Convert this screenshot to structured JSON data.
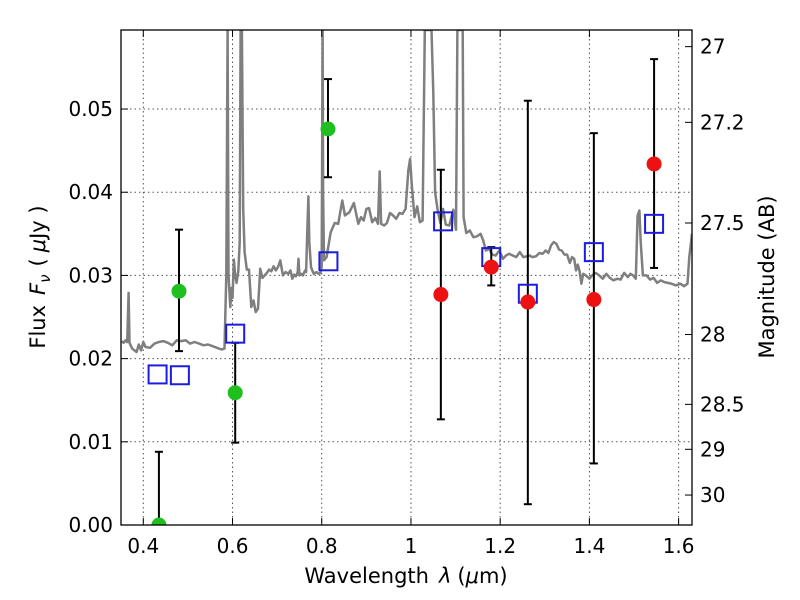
{
  "chart_data": {
    "type": "scatter",
    "xlabel_text": "Wavelength",
    "xlabel_symbol": "λ",
    "xlabel_unit_open": "(",
    "xlabel_unit_mu": "μ",
    "xlabel_unit_rest": "m)",
    "ylabel_text": "Flux",
    "ylabel_symbol_main": "F",
    "ylabel_symbol_sub": "ν",
    "ylabel_unit_open": "(",
    "ylabel_unit_mu": "μ",
    "ylabel_unit_rest": "Jy )",
    "y2label": "Magnitude (AB)",
    "xlim": [
      0.35,
      1.63
    ],
    "ylim": [
      0,
      0.0595
    ],
    "grid": true,
    "x_ticks": [
      {
        "value": 0.4,
        "label": "0.4"
      },
      {
        "value": 0.6,
        "label": "0.6"
      },
      {
        "value": 0.8,
        "label": "0.8"
      },
      {
        "value": 1.0,
        "label": "1"
      },
      {
        "value": 1.2,
        "label": "1.2"
      },
      {
        "value": 1.4,
        "label": "1.4"
      },
      {
        "value": 1.6,
        "label": "1.6"
      }
    ],
    "y_ticks": [
      {
        "value": 0.0,
        "label": "0.00"
      },
      {
        "value": 0.01,
        "label": "0.01"
      },
      {
        "value": 0.02,
        "label": "0.02"
      },
      {
        "value": 0.03,
        "label": "0.03"
      },
      {
        "value": 0.04,
        "label": "0.04"
      },
      {
        "value": 0.05,
        "label": "0.05"
      }
    ],
    "y2_ticks": [
      {
        "flux": 0.0575,
        "label": "27"
      },
      {
        "flux": 0.0484,
        "label": "27.2"
      },
      {
        "flux": 0.0363,
        "label": "27.5"
      },
      {
        "flux": 0.0229,
        "label": "28"
      },
      {
        "flux": 0.0145,
        "label": "28.5"
      },
      {
        "flux": 0.0091,
        "label": "29"
      },
      {
        "flux": 0.0036,
        "label": "30"
      }
    ],
    "colors": {
      "spectrum": "#7f7f7f",
      "green": "#1fbf1f",
      "red": "#ee1111",
      "square": "#1c1ce0",
      "errorbar": "#000000",
      "grid": "#555555"
    },
    "spectrum": {
      "name": "",
      "points": [
        [
          0.352,
          0.0221
        ],
        [
          0.356,
          0.0219
        ],
        [
          0.36,
          0.0222
        ],
        [
          0.364,
          0.022
        ],
        [
          0.367,
          0.0279
        ],
        [
          0.369,
          0.0219
        ],
        [
          0.375,
          0.0212
        ],
        [
          0.385,
          0.0208
        ],
        [
          0.39,
          0.0217
        ],
        [
          0.395,
          0.021
        ],
        [
          0.4,
          0.022
        ],
        [
          0.405,
          0.0214
        ],
        [
          0.415,
          0.0213
        ],
        [
          0.425,
          0.0218
        ],
        [
          0.435,
          0.022
        ],
        [
          0.445,
          0.0221
        ],
        [
          0.455,
          0.0219
        ],
        [
          0.465,
          0.0216
        ],
        [
          0.475,
          0.0222
        ],
        [
          0.485,
          0.0221
        ],
        [
          0.495,
          0.0222
        ],
        [
          0.505,
          0.0218
        ],
        [
          0.515,
          0.022
        ],
        [
          0.525,
          0.0218
        ],
        [
          0.535,
          0.0216
        ],
        [
          0.545,
          0.0217
        ],
        [
          0.555,
          0.0215
        ],
        [
          0.565,
          0.0213
        ],
        [
          0.575,
          0.0211
        ],
        [
          0.582,
          0.0212
        ],
        [
          0.586,
          0.03
        ],
        [
          0.589,
          0.0595
        ],
        [
          0.591,
          0.03
        ],
        [
          0.595,
          0.0262
        ],
        [
          0.598,
          0.0285
        ],
        [
          0.6,
          0.0273
        ],
        [
          0.603,
          0.0319
        ],
        [
          0.606,
          0.03
        ],
        [
          0.609,
          0.0291
        ],
        [
          0.613,
          0.0305
        ],
        [
          0.616,
          0.034
        ],
        [
          0.618,
          0.0595
        ],
        [
          0.621,
          0.0595
        ],
        [
          0.624,
          0.038
        ],
        [
          0.627,
          0.0328
        ],
        [
          0.632,
          0.0307
        ],
        [
          0.637,
          0.0307
        ],
        [
          0.642,
          0.0262
        ],
        [
          0.647,
          0.027
        ],
        [
          0.652,
          0.0256
        ],
        [
          0.657,
          0.026
        ],
        [
          0.662,
          0.0308
        ],
        [
          0.667,
          0.0297
        ],
        [
          0.672,
          0.03
        ],
        [
          0.677,
          0.0303
        ],
        [
          0.682,
          0.0307
        ],
        [
          0.687,
          0.0305
        ],
        [
          0.692,
          0.0311
        ],
        [
          0.697,
          0.0306
        ],
        [
          0.702,
          0.031
        ],
        [
          0.707,
          0.0318
        ],
        [
          0.713,
          0.03
        ],
        [
          0.719,
          0.0304
        ],
        [
          0.725,
          0.0302
        ],
        [
          0.73,
          0.0306
        ],
        [
          0.734,
          0.0296
        ],
        [
          0.738,
          0.0301
        ],
        [
          0.742,
          0.0299
        ],
        [
          0.746,
          0.0304
        ],
        [
          0.748,
          0.032
        ],
        [
          0.75,
          0.03
        ],
        [
          0.754,
          0.0302
        ],
        [
          0.758,
          0.03
        ],
        [
          0.761,
          0.0304
        ],
        [
          0.763,
          0.0306
        ],
        [
          0.765,
          0.0304
        ],
        [
          0.768,
          0.0362
        ],
        [
          0.77,
          0.0395
        ],
        [
          0.772,
          0.034
        ],
        [
          0.776,
          0.031
        ],
        [
          0.782,
          0.0302
        ],
        [
          0.788,
          0.0304
        ],
        [
          0.793,
          0.0302
        ],
        [
          0.797,
          0.0303
        ],
        [
          0.8,
          0.031
        ],
        [
          0.802,
          0.0595
        ],
        [
          0.803,
          0.04
        ],
        [
          0.805,
          0.0318
        ],
        [
          0.811,
          0.0322
        ],
        [
          0.82,
          0.0352
        ],
        [
          0.829,
          0.0363
        ],
        [
          0.837,
          0.0362
        ],
        [
          0.846,
          0.039
        ],
        [
          0.852,
          0.0372
        ],
        [
          0.862,
          0.0376
        ],
        [
          0.872,
          0.0387
        ],
        [
          0.882,
          0.0362
        ],
        [
          0.888,
          0.037
        ],
        [
          0.894,
          0.0366
        ],
        [
          0.9,
          0.038
        ],
        [
          0.906,
          0.0381
        ],
        [
          0.913,
          0.0364
        ],
        [
          0.92,
          0.0369
        ],
        [
          0.926,
          0.0362
        ],
        [
          0.93,
          0.0425
        ],
        [
          0.933,
          0.0362
        ],
        [
          0.94,
          0.036
        ],
        [
          0.946,
          0.0363
        ],
        [
          0.953,
          0.0375
        ],
        [
          0.96,
          0.0372
        ],
        [
          0.967,
          0.0368
        ],
        [
          0.974,
          0.0375
        ],
        [
          0.981,
          0.0374
        ],
        [
          0.988,
          0.038
        ],
        [
          0.994,
          0.0426
        ],
        [
          0.998,
          0.044
        ],
        [
          1.002,
          0.0407
        ],
        [
          1.008,
          0.037
        ],
        [
          1.014,
          0.0383
        ],
        [
          1.02,
          0.0364
        ],
        [
          1.026,
          0.0366
        ],
        [
          1.031,
          0.0595
        ],
        [
          1.034,
          0.0595
        ],
        [
          1.038,
          0.0595
        ],
        [
          1.042,
          0.0595
        ],
        [
          1.046,
          0.0595
        ],
        [
          1.05,
          0.052
        ],
        [
          1.054,
          0.04
        ],
        [
          1.06,
          0.0378
        ],
        [
          1.066,
          0.0363
        ],
        [
          1.072,
          0.038
        ],
        [
          1.078,
          0.0361
        ],
        [
          1.086,
          0.036
        ],
        [
          1.095,
          0.0379
        ],
        [
          1.101,
          0.0355
        ],
        [
          1.104,
          0.0595
        ],
        [
          1.108,
          0.0595
        ],
        [
          1.112,
          0.0595
        ],
        [
          1.116,
          0.0595
        ],
        [
          1.118,
          0.037
        ],
        [
          1.124,
          0.0351
        ],
        [
          1.132,
          0.0354
        ],
        [
          1.14,
          0.0346
        ],
        [
          1.148,
          0.0347
        ],
        [
          1.156,
          0.035
        ],
        [
          1.162,
          0.0342
        ],
        [
          1.168,
          0.033
        ],
        [
          1.175,
          0.0332
        ],
        [
          1.182,
          0.0325
        ],
        [
          1.19,
          0.0324
        ],
        [
          1.198,
          0.033
        ],
        [
          1.206,
          0.032
        ],
        [
          1.213,
          0.0324
        ],
        [
          1.22,
          0.0326
        ],
        [
          1.228,
          0.0324
        ],
        [
          1.236,
          0.0322
        ],
        [
          1.244,
          0.0328
        ],
        [
          1.252,
          0.0322
        ],
        [
          1.26,
          0.0323
        ],
        [
          1.266,
          0.0324
        ],
        [
          1.272,
          0.0322
        ],
        [
          1.28,
          0.0323
        ],
        [
          1.288,
          0.0327
        ],
        [
          1.295,
          0.0326
        ],
        [
          1.302,
          0.033
        ],
        [
          1.308,
          0.0327
        ],
        [
          1.314,
          0.0336
        ],
        [
          1.32,
          0.034
        ],
        [
          1.326,
          0.0338
        ],
        [
          1.332,
          0.0331
        ],
        [
          1.338,
          0.033
        ],
        [
          1.344,
          0.0325
        ],
        [
          1.35,
          0.0325
        ],
        [
          1.356,
          0.0315
        ],
        [
          1.361,
          0.0322
        ],
        [
          1.366,
          0.032
        ],
        [
          1.37,
          0.0306
        ],
        [
          1.374,
          0.0313
        ],
        [
          1.378,
          0.0305
        ],
        [
          1.382,
          0.029
        ],
        [
          1.386,
          0.0302
        ],
        [
          1.392,
          0.03
        ],
        [
          1.4,
          0.0296
        ],
        [
          1.406,
          0.03
        ],
        [
          1.414,
          0.0303
        ],
        [
          1.422,
          0.03
        ],
        [
          1.43,
          0.0296
        ],
        [
          1.438,
          0.0302
        ],
        [
          1.446,
          0.0297
        ],
        [
          1.454,
          0.0294
        ],
        [
          1.462,
          0.0296
        ],
        [
          1.47,
          0.0295
        ],
        [
          1.478,
          0.0303
        ],
        [
          1.486,
          0.0298
        ],
        [
          1.492,
          0.0302
        ],
        [
          1.498,
          0.03
        ],
        [
          1.504,
          0.0296
        ],
        [
          1.508,
          0.0372
        ],
        [
          1.512,
          0.0378
        ],
        [
          1.515,
          0.034
        ],
        [
          1.52,
          0.03
        ],
        [
          1.528,
          0.03
        ],
        [
          1.536,
          0.0295
        ],
        [
          1.544,
          0.0297
        ],
        [
          1.552,
          0.0291
        ],
        [
          1.56,
          0.0294
        ],
        [
          1.568,
          0.0292
        ],
        [
          1.576,
          0.0291
        ],
        [
          1.584,
          0.029
        ],
        [
          1.594,
          0.0288
        ],
        [
          1.604,
          0.029
        ],
        [
          1.612,
          0.0287
        ],
        [
          1.62,
          0.029
        ],
        [
          1.624,
          0.0322
        ],
        [
          1.63,
          0.035
        ]
      ]
    },
    "green_points": [
      {
        "x": 0.435,
        "y": 0.0,
        "lo": 0.0,
        "hi": 0.0088
      },
      {
        "x": 0.48,
        "y": 0.0281,
        "lo": 0.0209,
        "hi": 0.0355
      },
      {
        "x": 0.606,
        "y": 0.0159,
        "lo": 0.0099,
        "hi": 0.0219
      },
      {
        "x": 0.814,
        "y": 0.0476,
        "lo": 0.0418,
        "hi": 0.0536
      }
    ],
    "red_points": [
      {
        "x": 1.067,
        "y": 0.0277,
        "lo": 0.0127,
        "hi": 0.0427
      },
      {
        "x": 1.18,
        "y": 0.031,
        "lo": 0.0288,
        "hi": 0.0334
      },
      {
        "x": 1.262,
        "y": 0.0268,
        "lo": 0.0025,
        "hi": 0.051
      },
      {
        "x": 1.41,
        "y": 0.0271,
        "lo": 0.0074,
        "hi": 0.0471
      },
      {
        "x": 1.545,
        "y": 0.0434,
        "lo": 0.0309,
        "hi": 0.056
      }
    ],
    "model_squares": [
      {
        "x": 0.432,
        "y": 0.0181
      },
      {
        "x": 0.482,
        "y": 0.018
      },
      {
        "x": 0.606,
        "y": 0.023
      },
      {
        "x": 0.815,
        "y": 0.0317
      },
      {
        "x": 1.072,
        "y": 0.0365
      },
      {
        "x": 1.18,
        "y": 0.0322
      },
      {
        "x": 1.262,
        "y": 0.0278
      },
      {
        "x": 1.41,
        "y": 0.0328
      },
      {
        "x": 1.545,
        "y": 0.0362
      }
    ]
  }
}
